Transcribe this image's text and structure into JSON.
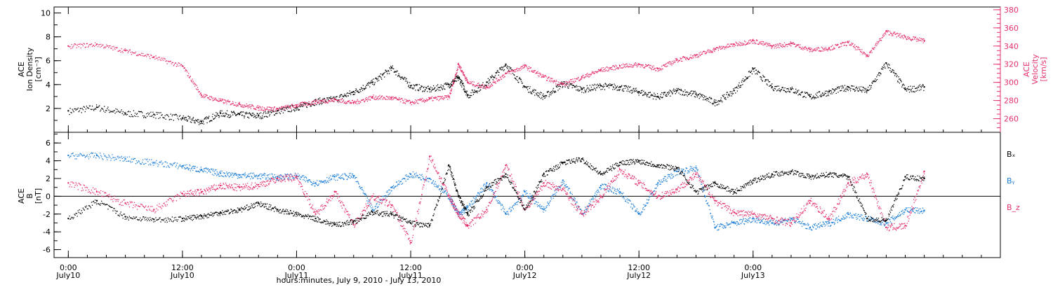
{
  "chart_data": [
    {
      "type": "scatter",
      "ylabel": [
        "ACE",
        "Ion Density",
        "[cm⁻³]"
      ],
      "ylabel_right": [
        "ACE",
        "Velocity",
        "[km/s]"
      ],
      "ylim": [
        0,
        10.5
      ],
      "ylim_right": [
        245,
        383
      ],
      "yticks": [
        2,
        4,
        6,
        8,
        10
      ],
      "yticks_right": [
        260,
        280,
        300,
        320,
        340,
        360,
        380
      ],
      "colors": {
        "density": "#000000",
        "velocity": "#e5306b"
      },
      "series": [
        {
          "axis": "left",
          "color": "#000000",
          "x": [
            0,
            3,
            6,
            9,
            12,
            14,
            16,
            18,
            20,
            22,
            24,
            26,
            28,
            30,
            32,
            34,
            36,
            38,
            40,
            41,
            42,
            44,
            46,
            48,
            50,
            52,
            54,
            56,
            58,
            60,
            62,
            64,
            66,
            68,
            70,
            72,
            74,
            76,
            78,
            80,
            82,
            84,
            86,
            88,
            90
          ],
          "y": [
            1.8,
            2.1,
            1.6,
            1.5,
            1.2,
            0.9,
            1.6,
            1.5,
            1.4,
            1.8,
            2.1,
            2.6,
            2.8,
            3.4,
            4.2,
            5.4,
            3.9,
            3.6,
            4.0,
            4.6,
            3.1,
            4.2,
            5.7,
            3.8,
            3.0,
            4.1,
            3.6,
            3.9,
            3.8,
            3.4,
            3.0,
            3.5,
            3.2,
            2.5,
            3.5,
            5.3,
            3.8,
            3.6,
            3.0,
            3.4,
            3.8,
            3.5,
            5.8,
            3.6,
            3.8
          ]
        },
        {
          "axis": "right",
          "color": "#e5306b",
          "x": [
            0,
            3,
            6,
            9,
            12,
            14,
            16,
            18,
            20,
            22,
            24,
            26,
            28,
            30,
            32,
            34,
            36,
            38,
            40,
            41,
            42,
            44,
            46,
            48,
            50,
            52,
            54,
            56,
            58,
            60,
            62,
            64,
            66,
            68,
            70,
            72,
            74,
            76,
            78,
            80,
            82,
            84,
            86,
            88,
            90
          ],
          "y": [
            340,
            342,
            335,
            328,
            318,
            286,
            280,
            276,
            272,
            271,
            275,
            279,
            281,
            278,
            284,
            283,
            278,
            282,
            284,
            320,
            300,
            295,
            310,
            318,
            306,
            298,
            306,
            314,
            318,
            320,
            315,
            325,
            330,
            337,
            342,
            346,
            340,
            343,
            336,
            338,
            344,
            330,
            356,
            350,
            346
          ]
        }
      ]
    },
    {
      "type": "scatter",
      "ylabel": [
        "ACE",
        "B",
        "[nT]"
      ],
      "ylim": [
        -6.9,
        7.2
      ],
      "yticks": [
        -6,
        -4,
        -2,
        0,
        2,
        4,
        6
      ],
      "zero_line": true,
      "legend": [
        "Bₓ",
        "Bᵧ",
        "B_z"
      ],
      "legend_placement": "right",
      "series": [
        {
          "name": "Bₓ",
          "color": "#000000",
          "x": [
            0,
            3,
            6,
            9,
            12,
            14,
            16,
            18,
            20,
            22,
            24,
            26,
            28,
            30,
            32,
            34,
            36,
            38,
            40,
            41,
            42,
            44,
            46,
            48,
            50,
            52,
            54,
            56,
            58,
            60,
            62,
            64,
            66,
            68,
            70,
            72,
            74,
            76,
            78,
            80,
            82,
            84,
            86,
            88,
            90
          ],
          "y": [
            -2.5,
            -0.5,
            -2.3,
            -2.6,
            -2.5,
            -2.2,
            -1.8,
            -1.5,
            -0.8,
            -1.5,
            -2.0,
            -2.5,
            -3.2,
            -2.8,
            -1.8,
            -2.0,
            -3.0,
            -3.3,
            3.5,
            0.0,
            -2.0,
            1.0,
            2.5,
            -1.5,
            2.5,
            3.8,
            4.2,
            2.5,
            3.8,
            4.0,
            3.5,
            3.2,
            0.5,
            1.5,
            0.5,
            1.8,
            2.5,
            2.8,
            2.2,
            2.5,
            2.2,
            -2.5,
            -2.7,
            2.2,
            2.0
          ]
        },
        {
          "name": "Bᵧ",
          "color": "#1e7fd8",
          "x": [
            0,
            3,
            6,
            9,
            12,
            14,
            16,
            18,
            20,
            22,
            24,
            26,
            28,
            30,
            32,
            34,
            36,
            38,
            40,
            41,
            42,
            44,
            46,
            48,
            50,
            52,
            54,
            56,
            58,
            60,
            62,
            64,
            66,
            68,
            70,
            72,
            74,
            76,
            78,
            80,
            82,
            84,
            86,
            88,
            90
          ],
          "y": [
            4.6,
            4.6,
            4.2,
            3.8,
            3.4,
            3.0,
            2.6,
            2.4,
            2.3,
            2.2,
            2.3,
            1.5,
            2.2,
            2.3,
            -1.5,
            1.0,
            2.5,
            2.0,
            0.0,
            -2.0,
            -1.2,
            1.5,
            -2.0,
            0.5,
            -1.5,
            1.8,
            -2.0,
            1.2,
            0.5,
            -2.0,
            1.5,
            2.8,
            3.2,
            -3.5,
            -3.0,
            -2.5,
            -3.0,
            -2.5,
            -3.5,
            -3.0,
            -2.0,
            -2.5,
            -3.0,
            -1.5,
            -1.6
          ]
        },
        {
          "name": "B_z",
          "color": "#e5306b",
          "x": [
            0,
            3,
            6,
            9,
            12,
            14,
            16,
            18,
            20,
            22,
            24,
            26,
            28,
            30,
            32,
            34,
            36,
            38,
            40,
            41,
            42,
            44,
            46,
            48,
            50,
            52,
            54,
            56,
            58,
            60,
            62,
            64,
            66,
            68,
            70,
            72,
            74,
            76,
            78,
            80,
            82,
            84,
            86,
            88,
            90
          ],
          "y": [
            1.5,
            0.5,
            -0.8,
            -1.5,
            0.3,
            0.5,
            1.2,
            1.0,
            1.3,
            2.0,
            2.2,
            -2.0,
            0.5,
            -3.2,
            0.0,
            -1.0,
            -5.2,
            4.5,
            0.0,
            -2.0,
            -3.3,
            -1.5,
            3.5,
            -1.5,
            1.5,
            0.8,
            -2.0,
            0.0,
            3.0,
            1.5,
            0.0,
            0.8,
            2.5,
            -0.5,
            -1.8,
            -2.0,
            -2.5,
            -3.0,
            -0.5,
            -2.5,
            1.5,
            2.5,
            -3.5,
            -3.3,
            2.8
          ]
        }
      ]
    }
  ],
  "x_axis": {
    "range_hours": [
      -1.5,
      98
    ],
    "tick_labels": [
      {
        "x": 0,
        "time": "0:00",
        "date": "July10"
      },
      {
        "x": 12,
        "time": "12:00",
        "date": "July10"
      },
      {
        "x": 24,
        "time": "0:00",
        "date": "July11"
      },
      {
        "x": 36,
        "time": "12:00",
        "date": "July11"
      },
      {
        "x": 48,
        "time": "0:00",
        "date": "July12"
      },
      {
        "x": 60,
        "time": "12:00",
        "date": "July12"
      },
      {
        "x": 72,
        "time": "0:00",
        "date": "July13"
      }
    ],
    "title": "hours:minutes, July  9, 2010 - July 13, 2010"
  }
}
